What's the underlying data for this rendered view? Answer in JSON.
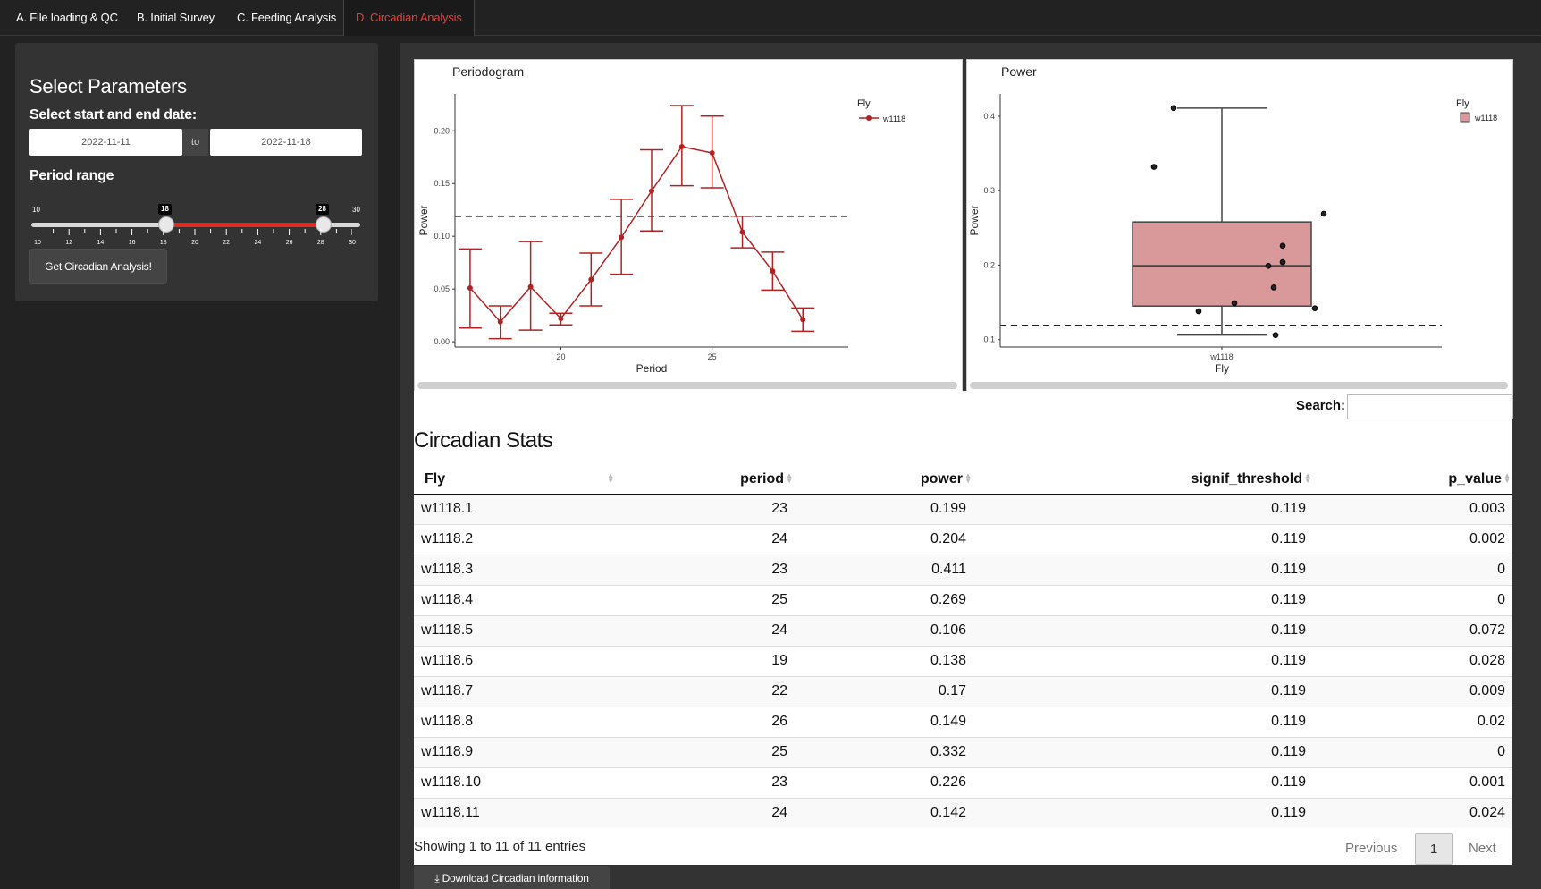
{
  "tabs": [
    {
      "label": "A. File loading & QC"
    },
    {
      "label": "B. Initial Survey"
    },
    {
      "label": "C. Feeding Analysis"
    },
    {
      "label": "D. Circadian Analysis",
      "active": true
    }
  ],
  "sidebar": {
    "title": "Select Parameters",
    "date_label": "Select start and end date:",
    "start_date": "2022-11-11",
    "end_date": "2022-11-18",
    "date_separator": "to",
    "period_label": "Period range",
    "slider": {
      "min": 10,
      "max": 30,
      "low": 18,
      "high": 28,
      "min_label": "10",
      "max_label": "30",
      "low_label": "18",
      "high_label": "28",
      "tick_labels": [
        "10",
        "12",
        "14",
        "16",
        "18",
        "20",
        "22",
        "24",
        "26",
        "28",
        "30"
      ]
    },
    "run_button": "Get Circadian Analysis!"
  },
  "chart_data": [
    {
      "type": "line",
      "title": "Periodogram",
      "xlabel": "Period",
      "ylabel": "Power",
      "xlim": [
        16.5,
        29.5
      ],
      "ylim": [
        -0.005,
        0.235
      ],
      "x_ticks": [
        "20",
        "25"
      ],
      "y_ticks": [
        "0.00",
        "0.05",
        "0.10",
        "0.15",
        "0.20"
      ],
      "legend_title": "Fly",
      "series": [
        {
          "name": "w1118",
          "color": "#b22222",
          "x": [
            17,
            18,
            19,
            20,
            21,
            22,
            23,
            24,
            25,
            26,
            27,
            28
          ],
          "values": [
            0.051,
            0.019,
            0.052,
            0.022,
            0.059,
            0.099,
            0.143,
            0.185,
            0.179,
            0.104,
            0.067,
            0.021
          ],
          "err_low": [
            0.013,
            0.003,
            0.011,
            0.016,
            0.034,
            0.064,
            0.105,
            0.148,
            0.146,
            0.089,
            0.049,
            0.01
          ],
          "err_high": [
            0.088,
            0.034,
            0.095,
            0.027,
            0.084,
            0.135,
            0.182,
            0.224,
            0.214,
            0.119,
            0.085,
            0.032
          ]
        }
      ],
      "threshold": 0.119
    },
    {
      "type": "box",
      "title": "Power",
      "xlabel": "Fly",
      "ylabel": "Power",
      "ylim": [
        0.09,
        0.43
      ],
      "y_ticks": [
        "0.1",
        "0.2",
        "0.3",
        "0.4"
      ],
      "categories": [
        "w1118"
      ],
      "legend_title": "Fly",
      "legend_entry": "w1118",
      "box": {
        "q1": 0.145,
        "median": 0.199,
        "q3": 0.258,
        "whisker_low": 0.106,
        "whisker_high": 0.411,
        "fill": "#d9999b"
      },
      "points": [
        0.199,
        0.204,
        0.411,
        0.269,
        0.106,
        0.138,
        0.17,
        0.149,
        0.332,
        0.226,
        0.142
      ],
      "threshold": 0.119
    }
  ],
  "search": {
    "label": "Search:",
    "placeholder": ""
  },
  "stats": {
    "title": "Circadian Stats",
    "columns": [
      "Fly",
      "period",
      "power",
      "signif_threshold",
      "p_value"
    ],
    "rows": [
      [
        "w1118.1",
        "23",
        "0.199",
        "0.119",
        "0.003"
      ],
      [
        "w1118.2",
        "24",
        "0.204",
        "0.119",
        "0.002"
      ],
      [
        "w1118.3",
        "23",
        "0.411",
        "0.119",
        "0"
      ],
      [
        "w1118.4",
        "25",
        "0.269",
        "0.119",
        "0"
      ],
      [
        "w1118.5",
        "24",
        "0.106",
        "0.119",
        "0.072"
      ],
      [
        "w1118.6",
        "19",
        "0.138",
        "0.119",
        "0.028"
      ],
      [
        "w1118.7",
        "22",
        "0.17",
        "0.119",
        "0.009"
      ],
      [
        "w1118.8",
        "26",
        "0.149",
        "0.119",
        "0.02"
      ],
      [
        "w1118.9",
        "25",
        "0.332",
        "0.119",
        "0"
      ],
      [
        "w1118.10",
        "23",
        "0.226",
        "0.119",
        "0.001"
      ],
      [
        "w1118.11",
        "24",
        "0.142",
        "0.119",
        "0.024"
      ]
    ],
    "info": "Showing 1 to 11 of 11 entries",
    "prev": "Previous",
    "page": "1",
    "next": "Next"
  },
  "download_button": "Download Circadian information",
  "icons": {
    "download": "download-icon",
    "sort": "sort-icon"
  }
}
